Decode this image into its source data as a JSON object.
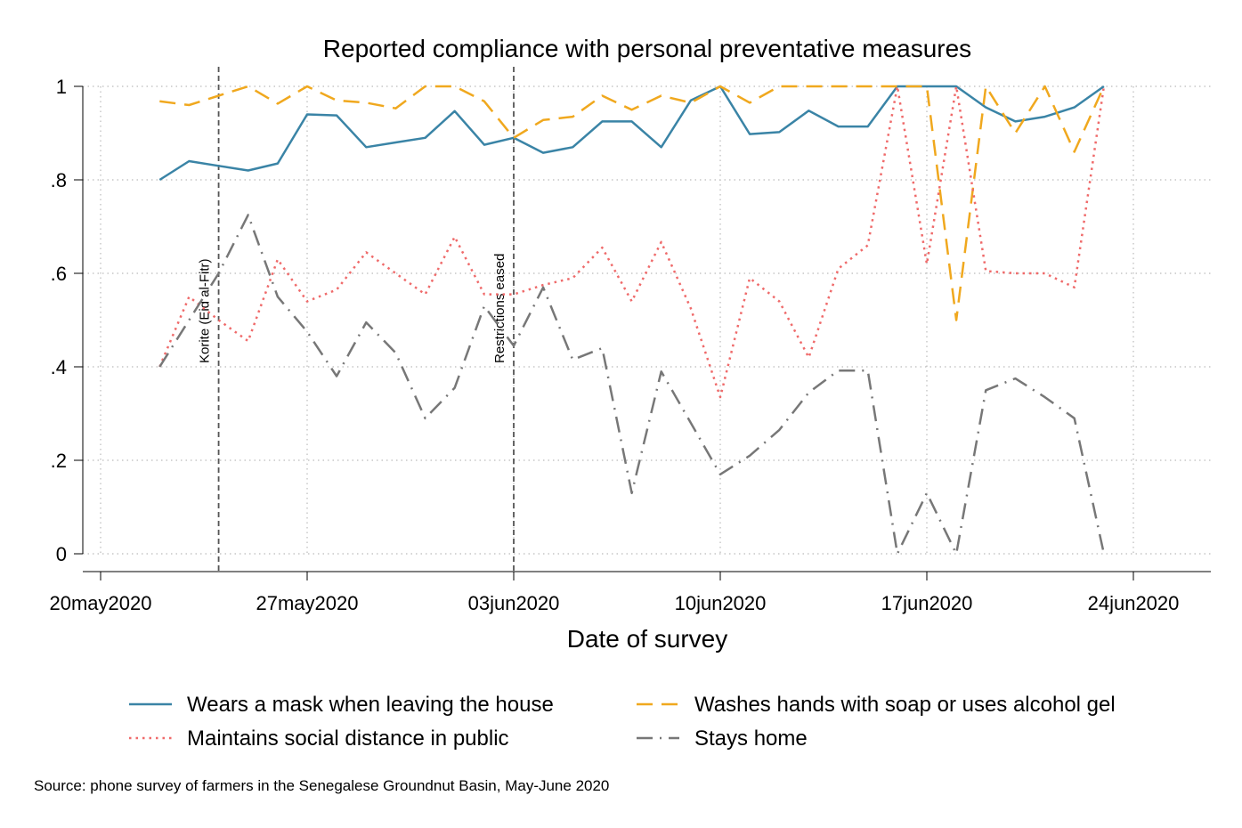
{
  "chart_data": {
    "type": "line",
    "title": "Reported compliance with personal preventative measures",
    "xlabel": "Date of survey",
    "ylabel": "",
    "x_axis_type": "date",
    "xlim": [
      "2020-05-20",
      "2020-06-26"
    ],
    "ylim": [
      0,
      1
    ],
    "x_ticks": [
      {
        "date": "2020-05-20",
        "label": "20may2020"
      },
      {
        "date": "2020-05-27",
        "label": "27may2020"
      },
      {
        "date": "2020-06-03",
        "label": "03jun2020"
      },
      {
        "date": "2020-06-10",
        "label": "10jun2020"
      },
      {
        "date": "2020-06-17",
        "label": "17jun2020"
      },
      {
        "date": "2020-06-24",
        "label": "24jun2020"
      }
    ],
    "y_ticks": [
      {
        "value": 0,
        "label": "0"
      },
      {
        "value": 0.2,
        "label": ".2"
      },
      {
        "value": 0.4,
        "label": ".4"
      },
      {
        "value": 0.6,
        "label": ".6"
      },
      {
        "value": 0.8,
        "label": ".8"
      },
      {
        "value": 1,
        "label": "1"
      }
    ],
    "grid": "horizontal dotted",
    "legend_position": "bottom",
    "x": [
      "2020-05-22",
      "2020-05-23",
      "2020-05-24",
      "2020-05-25",
      "2020-05-26",
      "2020-05-27",
      "2020-05-28",
      "2020-05-29",
      "2020-05-30",
      "2020-05-31",
      "2020-06-01",
      "2020-06-02",
      "2020-06-03",
      "2020-06-04",
      "2020-06-05",
      "2020-06-06",
      "2020-06-07",
      "2020-06-08",
      "2020-06-09",
      "2020-06-10",
      "2020-06-11",
      "2020-06-12",
      "2020-06-13",
      "2020-06-14",
      "2020-06-15",
      "2020-06-16",
      "2020-06-17",
      "2020-06-18",
      "2020-06-19",
      "2020-06-20",
      "2020-06-21",
      "2020-06-22",
      "2020-06-23"
    ],
    "series": [
      {
        "name": "Wears a mask when leaving the house",
        "color": "#3a84a6",
        "dash": "solid",
        "values": [
          0.8,
          0.84,
          0.83,
          0.82,
          0.835,
          0.94,
          0.938,
          0.87,
          0.88,
          0.89,
          0.947,
          0.875,
          0.89,
          0.858,
          0.87,
          0.925,
          0.925,
          0.87,
          0.97,
          1.0,
          0.898,
          0.902,
          0.948,
          0.914,
          0.914,
          1.0,
          1.0,
          1.0,
          0.955,
          0.925,
          0.935,
          0.955,
          1.0
        ]
      },
      {
        "name": "Washes hands with soap or uses alcohol gel",
        "color": "#f0a81e",
        "dash": "dashed",
        "values": [
          0.968,
          0.96,
          0.98,
          1.0,
          0.963,
          1.0,
          0.97,
          0.965,
          0.953,
          1.0,
          1.0,
          0.968,
          0.89,
          0.928,
          0.935,
          0.98,
          0.95,
          0.98,
          0.965,
          1.0,
          0.965,
          1.0,
          1.0,
          1.0,
          1.0,
          1.0,
          1.0,
          0.5,
          1.0,
          0.9,
          1.0,
          0.86,
          1.0
        ]
      },
      {
        "name": "Maintains social distance in public",
        "color": "#ef6a6a",
        "dash": "dotted",
        "values": [
          0.4,
          0.55,
          0.5,
          0.455,
          0.63,
          0.54,
          0.565,
          0.645,
          0.6,
          0.555,
          0.678,
          0.555,
          0.555,
          0.575,
          0.59,
          0.655,
          0.54,
          0.667,
          0.525,
          0.335,
          0.59,
          0.54,
          0.42,
          0.61,
          0.66,
          1.0,
          0.62,
          1.0,
          0.605,
          0.6,
          0.6,
          0.57,
          1.0
        ]
      },
      {
        "name": "Stays home",
        "color": "#777777",
        "dash": "dashdot",
        "values": [
          0.4,
          0.5,
          0.6,
          0.725,
          0.55,
          0.475,
          0.38,
          0.495,
          0.43,
          0.29,
          0.355,
          0.53,
          0.445,
          0.57,
          0.415,
          0.44,
          0.13,
          0.39,
          0.28,
          0.17,
          0.21,
          0.265,
          0.345,
          0.392,
          0.392,
          0.0,
          0.13,
          0.0,
          0.35,
          0.375,
          0.335,
          0.29,
          0.0
        ]
      }
    ],
    "annotations": [
      {
        "date": "2020-05-24",
        "text": "Korite (Eid al-Fitr)"
      },
      {
        "date": "2020-06-03",
        "text": "Restrictions eased"
      }
    ],
    "note": "Source: phone survey of farmers in the Senegalese Groundnut Basin, May-June 2020"
  }
}
